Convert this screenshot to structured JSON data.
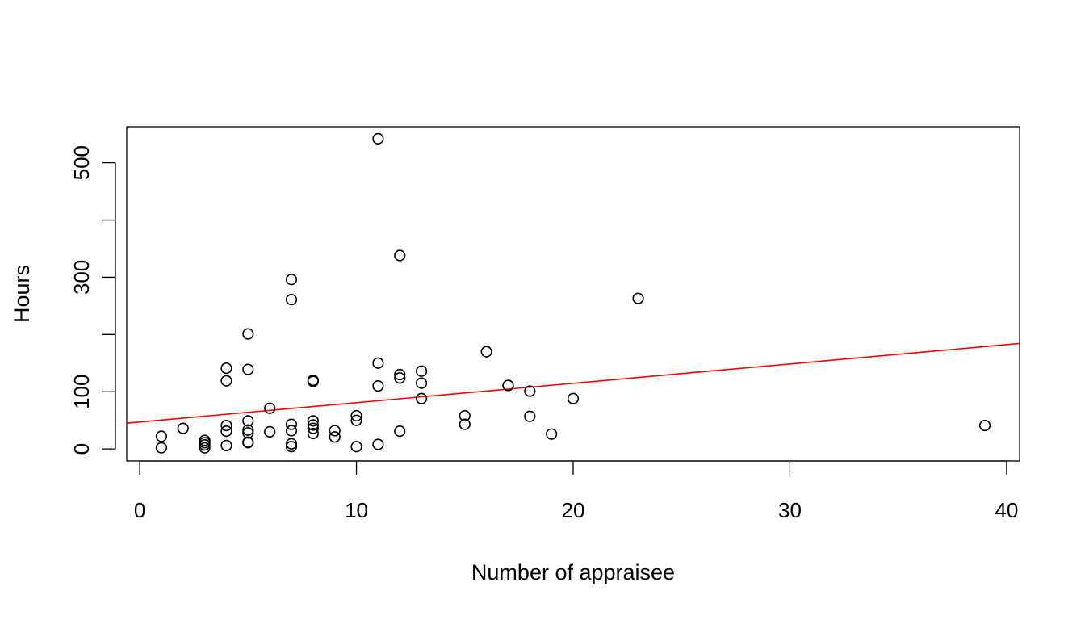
{
  "chart_data": {
    "type": "scatter",
    "title": "",
    "xlabel": "Number of appraisee",
    "ylabel": "Hours",
    "xlim": [
      -0.6,
      40.6
    ],
    "ylim": [
      -21,
      563
    ],
    "xticks": [
      0,
      10,
      20,
      30,
      40
    ],
    "yticks": [
      0,
      100,
      200,
      300,
      400,
      500
    ],
    "ytick_labels": [
      "0",
      "100",
      "",
      "300",
      "",
      "500"
    ],
    "grid": false,
    "marker_color": "#000000",
    "line_color": "#ff0000",
    "points": {
      "x": [
        1,
        1,
        2,
        3,
        3,
        3,
        3,
        4,
        4,
        4,
        4,
        4,
        5,
        5,
        5,
        5,
        5,
        5,
        5,
        6,
        6,
        7,
        7,
        7,
        7,
        7,
        7,
        8,
        8,
        8,
        8,
        8,
        8,
        9,
        9,
        10,
        10,
        10,
        11,
        11,
        11,
        11,
        12,
        12,
        12,
        12,
        13,
        13,
        13,
        15,
        15,
        16,
        17,
        17,
        18,
        18,
        19,
        20,
        23,
        39
      ],
      "y": [
        22,
        2,
        36,
        15,
        11,
        7,
        2,
        6,
        31,
        41,
        141,
        119,
        11,
        12,
        28,
        33,
        49,
        201,
        139,
        30,
        71,
        4,
        9,
        32,
        43,
        296,
        261,
        36,
        42,
        49,
        118,
        120,
        27,
        21,
        32,
        4,
        50,
        58,
        8,
        110,
        150,
        542,
        31,
        124,
        130,
        338,
        136,
        115,
        88,
        43,
        58,
        170,
        111,
        111,
        101,
        57,
        26,
        88,
        263,
        41
      ]
    },
    "fit_line": {
      "intercept": 47.1,
      "slope": 3.38
    }
  }
}
